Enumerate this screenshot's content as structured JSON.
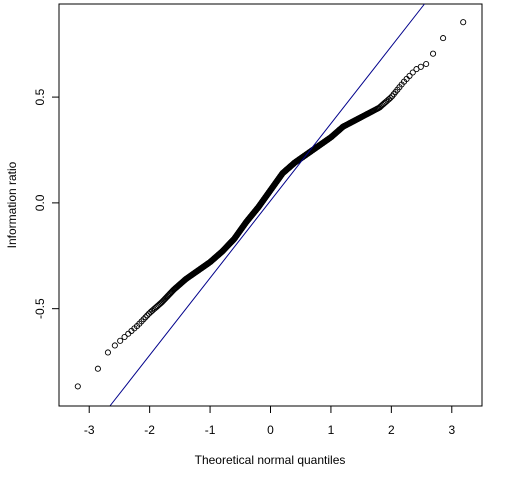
{
  "chart_data": {
    "type": "scatter",
    "title": "",
    "xlabel": "Theoretical normal quantiles",
    "ylabel": "Information ratio",
    "xlim": [
      -3.5,
      3.5
    ],
    "ylim": [
      -0.96,
      0.94
    ],
    "xticks": [
      -3,
      -2,
      -1,
      0,
      1,
      2,
      3
    ],
    "xtick_labels": [
      "-3",
      "-2",
      "-1",
      "0",
      "1",
      "2",
      "3"
    ],
    "yticks": [
      -0.5,
      0.0,
      0.5
    ],
    "ytick_labels": [
      "-0.5",
      "0.0",
      "0.5"
    ],
    "grid": false,
    "point_style": "open circle",
    "point_color": "#000000",
    "reference_line": {
      "name": "",
      "color": "#00008b",
      "slope": 0.365,
      "intercept": 0.01
    },
    "quantile_profile": {
      "x": [
        -3.3,
        -2.95,
        -2.8,
        -2.7,
        -2.6,
        -2.4,
        -2.2,
        -2.0,
        -1.8,
        -1.6,
        -1.4,
        -1.2,
        -1.0,
        -0.8,
        -0.6,
        -0.4,
        -0.2,
        0.0,
        0.2,
        0.4,
        0.6,
        0.8,
        1.0,
        1.2,
        1.4,
        1.6,
        1.8,
        2.0,
        2.2,
        2.4,
        2.6,
        2.7,
        2.95,
        3.3
      ],
      "y": [
        -0.88,
        -0.84,
        -0.75,
        -0.71,
        -0.68,
        -0.63,
        -0.58,
        -0.52,
        -0.47,
        -0.41,
        -0.36,
        -0.32,
        -0.28,
        -0.23,
        -0.17,
        -0.09,
        -0.02,
        0.06,
        0.14,
        0.19,
        0.23,
        0.27,
        0.31,
        0.36,
        0.39,
        0.42,
        0.45,
        0.5,
        0.57,
        0.63,
        0.66,
        0.71,
        0.82,
        0.87
      ]
    },
    "n_points": 700
  }
}
